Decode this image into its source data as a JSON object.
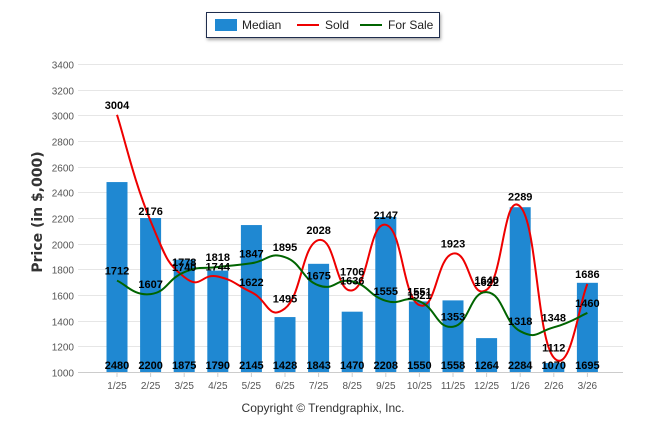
{
  "chart_data": {
    "type": "bar",
    "title": "",
    "xlabel": "",
    "ylabel": "Price (in $,000)",
    "ylim": [
      1000,
      3400
    ],
    "yticks": [
      1000,
      1200,
      1400,
      1600,
      1800,
      2000,
      2200,
      2400,
      2600,
      2800,
      3000,
      3200,
      3400
    ],
    "grid": true,
    "legend_position": "top-center",
    "categories": [
      "1/25",
      "2/25",
      "3/25",
      "4/25",
      "5/25",
      "6/25",
      "7/25",
      "8/25",
      "9/25",
      "10/25",
      "11/25",
      "12/25",
      "1/26",
      "2/26",
      "3/26"
    ],
    "series": [
      {
        "name": "Median",
        "kind": "bar",
        "color": "#1f88d2",
        "values": [
          2480,
          2200,
          1875,
          1790,
          2145,
          1428,
          1843,
          1470,
          2208,
          1550,
          1558,
          1264,
          2284,
          1070,
          1695
        ]
      },
      {
        "name": "Sold",
        "kind": "line",
        "color": "#ee0000",
        "values": [
          3004,
          2176,
          1740,
          1744,
          1622,
          1495,
          2028,
          1636,
          2147,
          1521,
          1923,
          1640,
          2289,
          1112,
          1686
        ]
      },
      {
        "name": "For Sale",
        "kind": "line",
        "color": "#006400",
        "values": [
          1712,
          1607,
          1778,
          1818,
          1847,
          1895,
          1675,
          1706,
          1555,
          1551,
          1353,
          1622,
          1318,
          1348,
          1460
        ]
      }
    ]
  },
  "legend": {
    "items": [
      {
        "label": "Median",
        "color": "#1f88d2"
      },
      {
        "label": "Sold",
        "color": "#ee0000"
      },
      {
        "label": "For Sale",
        "color": "#006400"
      }
    ]
  },
  "footer": {
    "copyright": "Copyright © Trendgraphix, Inc."
  }
}
